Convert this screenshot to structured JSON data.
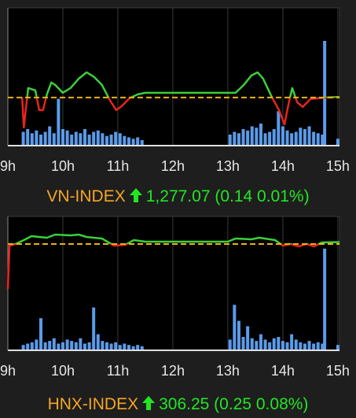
{
  "chart_data": [
    {
      "type": "line",
      "name": "VN-INDEX",
      "last_label": "1,277.07",
      "change_label": "(0.14 0.01%)",
      "xlim": [
        9,
        15.03
      ],
      "xticks": [
        {
          "value": 9,
          "label": "9h"
        },
        {
          "value": 10,
          "label": "10h"
        },
        {
          "value": 11,
          "label": "11h"
        },
        {
          "value": 12,
          "label": "12h"
        },
        {
          "value": 13,
          "label": "13h"
        },
        {
          "value": 14,
          "label": "14h"
        },
        {
          "value": 15,
          "label": "15h"
        }
      ],
      "ylim": [
        1264.7,
        1299.7
      ],
      "reference": 1276.93,
      "y2lim": [
        0,
        100
      ],
      "up_color": "#3ccf3c",
      "down_color": "#e8241c",
      "reference_color": "#e8b412",
      "volume_color": "#5b9bea",
      "price": {
        "x": [
          9.26,
          9.29,
          9.37,
          9.5,
          9.57,
          9.64,
          9.71,
          9.79,
          9.86,
          10,
          10.14,
          10.29,
          10.43,
          10.57,
          10.71,
          10.86,
          10.97,
          11.07,
          11.21,
          11.36,
          11.5,
          13.14,
          13.29,
          13.43,
          13.54,
          13.64,
          13.79,
          13.93,
          14.03,
          14.11,
          14.17,
          14.26,
          14.36,
          14.5,
          14.64,
          14.79,
          15.03
        ],
        "values": [
          1276.93,
          1269.33,
          1279.33,
          1278.73,
          1273.73,
          1273.73,
          1277.73,
          1280.73,
          1280.13,
          1278.13,
          1279.33,
          1281.73,
          1283.33,
          1282.13,
          1280.13,
          1276.13,
          1273.73,
          1274.73,
          1276.73,
          1277.73,
          1278.13,
          1278.13,
          1280.13,
          1282.53,
          1283.33,
          1281.73,
          1277.33,
          1273.73,
          1270.13,
          1275.73,
          1279.33,
          1275.73,
          1274.53,
          1276.53,
          1276.73,
          1276.93,
          1277.07
        ]
      },
      "volume": {
        "x": [
          9.28,
          9.36,
          9.44,
          9.52,
          9.6,
          9.68,
          9.76,
          9.84,
          9.92,
          10,
          10.08,
          10.16,
          10.24,
          10.32,
          10.4,
          10.48,
          10.56,
          10.64,
          10.72,
          10.8,
          10.88,
          10.96,
          11.04,
          11.12,
          11.2,
          11.28,
          11.36,
          11.44,
          13.04,
          13.12,
          13.2,
          13.28,
          13.36,
          13.44,
          13.52,
          13.6,
          13.68,
          13.76,
          13.84,
          13.92,
          14,
          14.08,
          14.16,
          14.24,
          14.32,
          14.4,
          14.48,
          14.56,
          14.64,
          14.72,
          14.76,
          15
        ],
        "values": [
          10,
          12,
          9,
          11,
          8,
          10,
          14,
          9,
          34,
          12,
          11,
          8,
          10,
          9,
          12,
          8,
          10,
          11,
          9,
          7,
          8,
          10,
          9,
          7,
          6,
          5,
          6,
          4,
          8,
          10,
          9,
          12,
          11,
          14,
          13,
          16,
          9,
          10,
          12,
          25,
          14,
          11,
          9,
          10,
          13,
          12,
          14,
          10,
          9,
          8,
          76,
          5
        ]
      }
    },
    {
      "type": "line",
      "name": "HNX-INDEX",
      "last_label": "306.25",
      "change_label": "(0.25 0.08%)",
      "xlim": [
        9,
        15.03
      ],
      "xticks": [
        {
          "value": 9,
          "label": "9h"
        },
        {
          "value": 10,
          "label": "10h"
        },
        {
          "value": 11,
          "label": "11h"
        },
        {
          "value": 12,
          "label": "12h"
        },
        {
          "value": 13,
          "label": "13h"
        },
        {
          "value": 14,
          "label": "14h"
        },
        {
          "value": 15,
          "label": "15h"
        }
      ],
      "ylim": [
        292.5,
        309.5
      ],
      "reference": 306,
      "y2lim": [
        0,
        100
      ],
      "up_color": "#3ccf3c",
      "down_color": "#e8241c",
      "reference_color": "#e8b412",
      "volume_color": "#5b9bea",
      "price": {
        "x": [
          9,
          9.03,
          9.14,
          9.29,
          9.43,
          9.71,
          9.86,
          10.14,
          10.29,
          10.43,
          10.71,
          10.93,
          11.14,
          11.29,
          11.5,
          13,
          13.14,
          13.43,
          13.57,
          13.86,
          14,
          14.14,
          14.29,
          14.43,
          14.57,
          14.71,
          15.03
        ],
        "values": [
          300.3,
          305.8,
          306,
          306.5,
          307,
          306.8,
          307.2,
          307.1,
          307.2,
          306.9,
          306.7,
          305.8,
          305.9,
          306.5,
          306.3,
          306.3,
          306.7,
          306.6,
          306.8,
          306.5,
          305.8,
          306,
          305.7,
          306,
          305.7,
          306.2,
          306.25
        ]
      },
      "volume": {
        "x": [
          9.28,
          9.36,
          9.44,
          9.52,
          9.6,
          9.68,
          9.76,
          9.84,
          9.92,
          10,
          10.08,
          10.16,
          10.24,
          10.32,
          10.4,
          10.48,
          10.56,
          10.64,
          10.72,
          10.8,
          10.88,
          10.96,
          11.04,
          11.12,
          11.2,
          11.28,
          11.36,
          11.44,
          13.04,
          13.12,
          13.2,
          13.28,
          13.36,
          13.44,
          13.52,
          13.6,
          13.68,
          13.76,
          13.84,
          13.92,
          14,
          14.08,
          14.16,
          14.24,
          14.32,
          14.4,
          14.48,
          14.56,
          14.64,
          14.72,
          14.76,
          15
        ],
        "values": [
          4,
          5,
          6,
          8,
          24,
          6,
          7,
          9,
          5,
          6,
          8,
          7,
          6,
          9,
          5,
          6,
          32,
          12,
          7,
          6,
          5,
          6,
          4,
          5,
          4,
          3,
          4,
          3,
          8,
          34,
          22,
          10,
          18,
          9,
          7,
          12,
          8,
          6,
          9,
          10,
          7,
          6,
          12,
          8,
          6,
          5,
          7,
          5,
          6,
          5,
          76,
          4
        ]
      }
    }
  ]
}
